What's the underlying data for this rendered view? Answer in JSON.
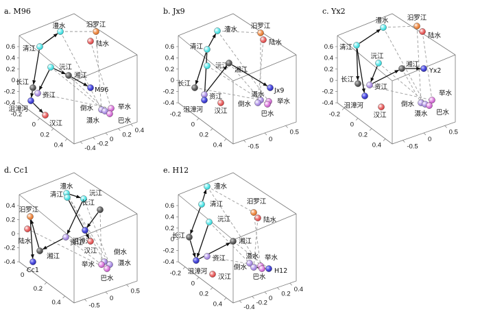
{
  "panels": [
    {
      "title": "a. M96",
      "z_ticks": [
        "0.6",
        "0.4",
        "0.2",
        "0",
        "-0.2",
        "-0.4"
      ],
      "x_ticks": [
        "-0.2",
        "0",
        "0.2",
        "0.4"
      ],
      "y_ticks": [
        "0.4",
        "0.2",
        "0",
        "-0.2",
        "-0.4"
      ],
      "nodes": [
        {
          "name": "澧水",
          "type": "cyan"
        },
        {
          "name": "清江",
          "type": "cyan"
        },
        {
          "name": "沅江",
          "type": "cyan"
        },
        {
          "name": "汨罗江",
          "type": "orange"
        },
        {
          "name": "陆水",
          "type": "red"
        },
        {
          "name": "湘江",
          "type": "gray"
        },
        {
          "name": "M96",
          "type": "blue"
        },
        {
          "name": "长江",
          "type": "gray"
        },
        {
          "name": "资江",
          "type": "violet"
        },
        {
          "name": "沮漳河",
          "type": "blue"
        },
        {
          "name": "汉江",
          "type": "red"
        },
        {
          "name": "倒水",
          "type": "violet"
        },
        {
          "name": "举水",
          "type": "pink"
        },
        {
          "name": "滠水",
          "type": "violet"
        },
        {
          "name": "巴水",
          "type": "pink"
        }
      ]
    },
    {
      "title": "b. Jx9",
      "z_ticks": [
        "0.6",
        "0.4",
        "0.2",
        "0",
        "-0.2",
        "-0.4"
      ],
      "x_ticks": [
        "-0.2",
        "0",
        "0.2",
        "0.4"
      ],
      "y_ticks": [
        "0.5",
        "0",
        "-0.5"
      ],
      "nodes": [
        {
          "name": "澧水",
          "type": "cyan"
        },
        {
          "name": "清江",
          "type": "cyan"
        },
        {
          "name": "沅江",
          "type": "cyan"
        },
        {
          "name": "汨罗江",
          "type": "orange"
        },
        {
          "name": "陆水",
          "type": "red"
        },
        {
          "name": "湘江",
          "type": "gray"
        },
        {
          "name": "Jx9",
          "type": "blue"
        },
        {
          "name": "长江",
          "type": "gray"
        },
        {
          "name": "资江",
          "type": "violet"
        },
        {
          "name": "沮漳河",
          "type": "blue"
        },
        {
          "name": "汉江",
          "type": "red"
        },
        {
          "name": "滠水",
          "type": "violet"
        },
        {
          "name": "倒水",
          "type": "violet"
        },
        {
          "name": "举水",
          "type": "pink"
        },
        {
          "name": "巴水",
          "type": "pink"
        }
      ]
    },
    {
      "title": "c. Yx2",
      "z_ticks": [
        "0.6",
        "0.4",
        "0.2",
        "0",
        "-0.2",
        "-0.4"
      ],
      "x_ticks": [
        "-0.2",
        "0",
        "0.2",
        "0.4"
      ],
      "y_ticks": [
        "0.5",
        "0",
        "-0.5"
      ],
      "nodes": [
        {
          "name": "澧水",
          "type": "cyan"
        },
        {
          "name": "清江",
          "type": "cyan"
        },
        {
          "name": "沅江",
          "type": "cyan"
        },
        {
          "name": "汨罗江",
          "type": "orange"
        },
        {
          "name": "陆水",
          "type": "red"
        },
        {
          "name": "湘江",
          "type": "gray"
        },
        {
          "name": "Yx2",
          "type": "blue"
        },
        {
          "name": "长江",
          "type": "gray"
        },
        {
          "name": "资江",
          "type": "violet"
        },
        {
          "name": "沮漳河",
          "type": "blue"
        },
        {
          "name": "汉江",
          "type": "red"
        },
        {
          "name": "举水",
          "type": "pink"
        },
        {
          "name": "倒水",
          "type": "violet"
        },
        {
          "name": "滠水",
          "type": "violet"
        },
        {
          "name": "巴水",
          "type": "pink"
        }
      ]
    },
    {
      "title": "d. Cc1",
      "z_ticks": [
        "0.4",
        "0.2",
        "0",
        "-0.2",
        "-0.4"
      ],
      "x_ticks": [
        "0",
        "0.2",
        "0.4"
      ],
      "y_ticks": [
        "0.5",
        "0",
        "-0.5"
      ],
      "nodes": [
        {
          "name": "澧水",
          "type": "cyan"
        },
        {
          "name": "清江",
          "type": "cyan"
        },
        {
          "name": "沅江",
          "type": "cyan"
        },
        {
          "name": "长江",
          "type": "gray"
        },
        {
          "name": "沮漳河",
          "type": "blue"
        },
        {
          "name": "汨罗江",
          "type": "orange"
        },
        {
          "name": "陆水",
          "type": "red"
        },
        {
          "name": "湘江",
          "type": "gray"
        },
        {
          "name": "资江",
          "type": "violet"
        },
        {
          "name": "汉江",
          "type": "red"
        },
        {
          "name": "Cc1",
          "type": "blue"
        },
        {
          "name": "倒水",
          "type": "violet"
        },
        {
          "name": "滠水",
          "type": "violet"
        },
        {
          "name": "举水",
          "type": "pink"
        },
        {
          "name": "巴水",
          "type": "pink"
        }
      ]
    },
    {
      "title": "e. H12",
      "z_ticks": [
        "0.6",
        "0.4",
        "0.2",
        "0",
        "-0.2",
        "-0.4"
      ],
      "x_ticks": [
        "-0.2",
        "0",
        "0.2",
        "0.4"
      ],
      "y_ticks": [
        "0.4",
        "0.2",
        "0",
        "-0.2",
        "-0.4"
      ],
      "nodes": [
        {
          "name": "澧水",
          "type": "cyan"
        },
        {
          "name": "清江",
          "type": "cyan"
        },
        {
          "name": "沅江",
          "type": "cyan"
        },
        {
          "name": "汨罗江",
          "type": "orange"
        },
        {
          "name": "陆水",
          "type": "red"
        },
        {
          "name": "湘江",
          "type": "gray"
        },
        {
          "name": "长江",
          "type": "gray"
        },
        {
          "name": "资江",
          "type": "violet"
        },
        {
          "name": "沮漳河",
          "type": "blue"
        },
        {
          "name": "汉江",
          "type": "red"
        },
        {
          "name": "滠水",
          "type": "violet"
        },
        {
          "name": "举水",
          "type": "pink"
        },
        {
          "name": "倒水",
          "type": "violet"
        },
        {
          "name": "巴水",
          "type": "pink"
        },
        {
          "name": "H12",
          "type": "blue"
        }
      ]
    }
  ],
  "colors": {
    "cyan": "#3fe3e6",
    "orange": "#ee7a2a",
    "red": "#e84a4a",
    "gray": "#555555",
    "blue": "#3b3bd6",
    "violet": "#a98ce0",
    "pink": "#d66ad8",
    "solid_edge": "#111111",
    "dashed_edge": "#9a9a9a"
  },
  "chart_data": {
    "type": "scatter",
    "note_values": "3D ordination coordinates not printed; panels show relative node positions with solid and dashed connecting edges",
    "panels": [
      "a. M96",
      "b. Jx9",
      "c. Yx2",
      "d. Cc1",
      "e. H12"
    ]
  }
}
